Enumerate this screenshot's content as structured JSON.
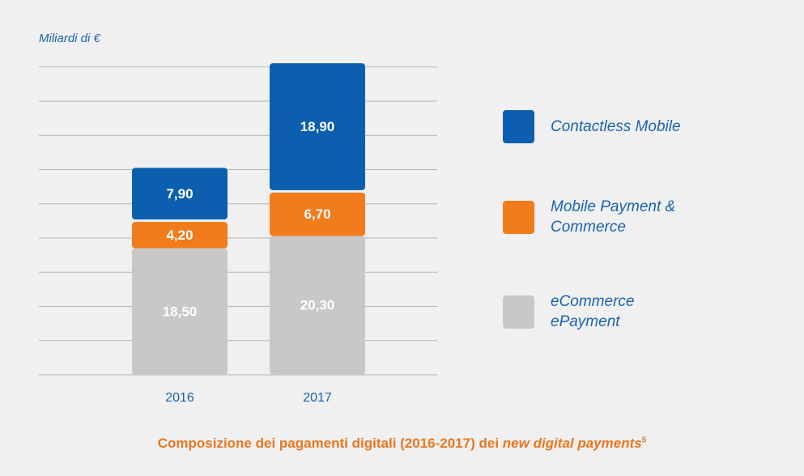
{
  "chart_data": {
    "type": "stacked_bar",
    "y_label": "Miliardi di €",
    "title": "Composizione dei pagamenti digitali (2016-2017) dei",
    "title_emphasis": "new digital payments",
    "title_footnote": "5",
    "categories": [
      "2016",
      "2017"
    ],
    "series": [
      {
        "name": "eCommerce ePayment",
        "color": "#c8c8c8",
        "values": [
          18.5,
          20.3
        ],
        "value_labels": [
          "18,50",
          "20,30"
        ]
      },
      {
        "name": "Mobile Payment & Commerce",
        "color": "#f07c1b",
        "values": [
          4.2,
          6.7
        ],
        "value_labels": [
          "4,20",
          "6,70"
        ]
      },
      {
        "name": "Contactless Mobile",
        "color": "#0b5fae",
        "values": [
          7.9,
          18.9
        ],
        "value_labels": [
          "7,90",
          "18,90"
        ]
      }
    ],
    "ylim": [
      0,
      46
    ],
    "yticks": [
      0,
      5,
      10,
      15,
      20,
      25,
      30,
      35,
      40,
      45
    ],
    "grid": true
  }
}
